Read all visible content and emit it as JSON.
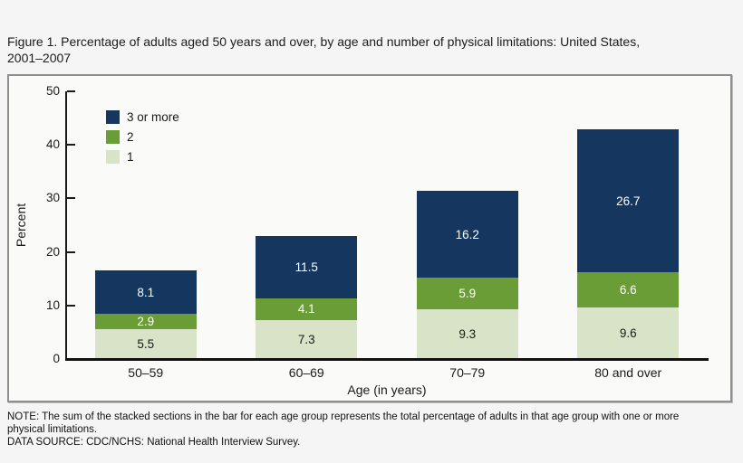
{
  "title": {
    "line1": "Figure 1. Percentage of adults aged 50 years and over, by age and number of physical limitations: United States,",
    "line2": "2001–2007"
  },
  "notes": {
    "note": "NOTE: The sum of the stacked sections in the bar for each age group represents the total percentage of adults in that age group with one or more physical limitations.",
    "source": "DATA SOURCE: CDC/NCHS: National Health Interview Survey."
  },
  "chart_data": {
    "type": "bar",
    "stacked": true,
    "title": "Figure 1. Percentage of adults aged 50 years and over, by age and number of physical limitations: United States, 2001–2007",
    "categories": [
      "50–59",
      "60–69",
      "70–79",
      "80 and over"
    ],
    "series": [
      {
        "name": "1",
        "color": "#d8e3c7",
        "label_color": "#1a1a1a",
        "values": [
          5.5,
          7.3,
          9.3,
          9.6
        ]
      },
      {
        "name": "2",
        "color": "#6b9d36",
        "label_color": "#ffffff",
        "values": [
          2.9,
          4.1,
          5.9,
          6.6
        ]
      },
      {
        "name": "3 or more",
        "color": "#14365f",
        "label_color": "#ffffff",
        "values": [
          8.1,
          11.5,
          16.2,
          26.7
        ]
      }
    ],
    "legend_order": [
      "3 or more",
      "2",
      "1"
    ],
    "legend_position": "top-left",
    "xlabel": "Age (in years)",
    "ylabel": "Percent",
    "ylim": [
      0,
      50
    ],
    "yticks": [
      0,
      10,
      20,
      30,
      40,
      50
    ],
    "grid": false,
    "value_labels": true,
    "colors": {
      "navy": "#14365f",
      "green": "#6b9d36",
      "light_green": "#d8e3c7",
      "axis": "#1a1a1a",
      "panel_border": "#8f8f8f",
      "background": "#f4f5f4"
    }
  }
}
